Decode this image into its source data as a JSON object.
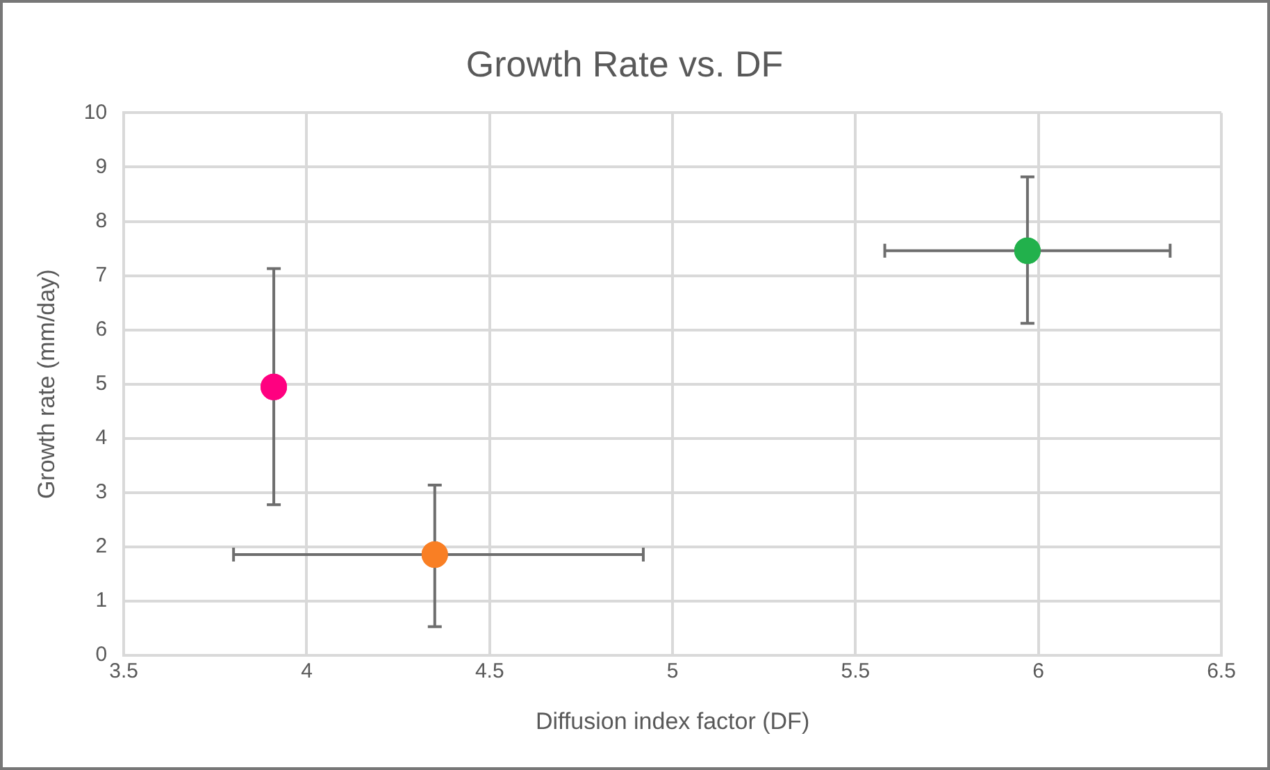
{
  "chart_data": {
    "type": "scatter",
    "title": "Growth Rate vs. DF",
    "xlabel": "Diffusion index factor (DF)",
    "ylabel": "Growth rate (mm/day)",
    "x": [
      3.91,
      4.35,
      5.97
    ],
    "values": [
      4.95,
      1.86,
      7.46
    ],
    "colors": [
      "#ff0080",
      "#f97f24",
      "#22b14c"
    ],
    "errors": [
      [
        2.78,
        7.13
      ],
      [
        0.53,
        3.14
      ],
      [
        6.12,
        8.82
      ]
    ],
    "xerrors": [
      null,
      [
        3.8,
        4.92
      ],
      [
        5.58,
        6.36
      ]
    ],
    "xlim": [
      3.5,
      6.5
    ],
    "xticks": [
      3.5,
      4,
      4.5,
      5,
      5.5,
      6,
      6.5
    ],
    "ylim": [
      0,
      10
    ],
    "yticks": [
      0,
      1,
      2,
      3,
      4,
      5,
      6,
      7,
      8,
      9,
      10
    ],
    "grid": true,
    "marker": "circle",
    "legend": false
  }
}
